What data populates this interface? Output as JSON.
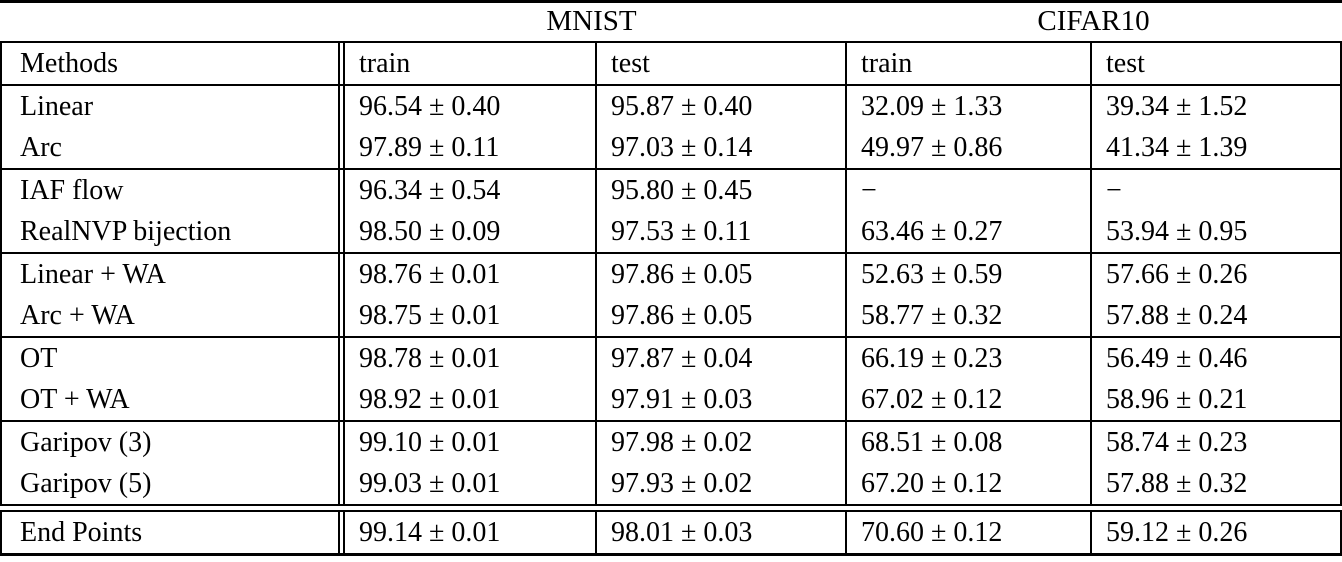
{
  "table": {
    "dataset_groups": [
      {
        "label": "MNIST"
      },
      {
        "label": "CIFAR10"
      }
    ],
    "column_headers": {
      "methods": "Methods",
      "mnist_train": "train",
      "mnist_test": "test",
      "cifar_train": "train",
      "cifar_test": "test"
    },
    "rows": [
      {
        "method": "Linear",
        "values": [
          "96.54 ± 0.40",
          "95.87 ± 0.40",
          "32.09 ± 1.33",
          "39.34 ± 1.52"
        ]
      },
      {
        "method": "Arc",
        "values": [
          "97.89 ± 0.11",
          "97.03 ± 0.14",
          "49.97 ± 0.86",
          "41.34 ± 1.39"
        ]
      },
      {
        "method": "IAF flow",
        "values": [
          "96.34 ± 0.54",
          "95.80 ± 0.45",
          "−",
          "−"
        ]
      },
      {
        "method": "RealNVP bijection",
        "values": [
          "98.50 ± 0.09",
          "97.53 ± 0.11",
          "63.46 ± 0.27",
          "53.94 ± 0.95"
        ]
      },
      {
        "method": "Linear + WA",
        "values": [
          "98.76 ± 0.01",
          "97.86 ± 0.05",
          "52.63 ± 0.59",
          "57.66 ± 0.26"
        ]
      },
      {
        "method": "Arc + WA",
        "values": [
          "98.75 ± 0.01",
          "97.86 ± 0.05",
          "58.77 ± 0.32",
          "57.88 ± 0.24"
        ]
      },
      {
        "method": "OT",
        "values": [
          "98.78 ± 0.01",
          "97.87 ± 0.04",
          "66.19 ± 0.23",
          "56.49 ± 0.46"
        ]
      },
      {
        "method": "OT + WA",
        "values": [
          "98.92 ± 0.01",
          "97.91 ± 0.03",
          "67.02 ± 0.12",
          "58.96 ± 0.21"
        ]
      },
      {
        "method": "Garipov (3)",
        "values": [
          "99.10 ± 0.01",
          "97.98 ± 0.02",
          "68.51 ± 0.08",
          "58.74 ± 0.23"
        ]
      },
      {
        "method": "Garipov (5)",
        "values": [
          "99.03 ± 0.01",
          "97.93 ± 0.02",
          "67.20 ± 0.12",
          "57.88 ± 0.32"
        ]
      }
    ],
    "footer_row": {
      "method": "End Points",
      "values": [
        "99.14 ± 0.01",
        "98.01 ± 0.03",
        "70.60 ± 0.12",
        "59.12 ± 0.26"
      ]
    }
  }
}
